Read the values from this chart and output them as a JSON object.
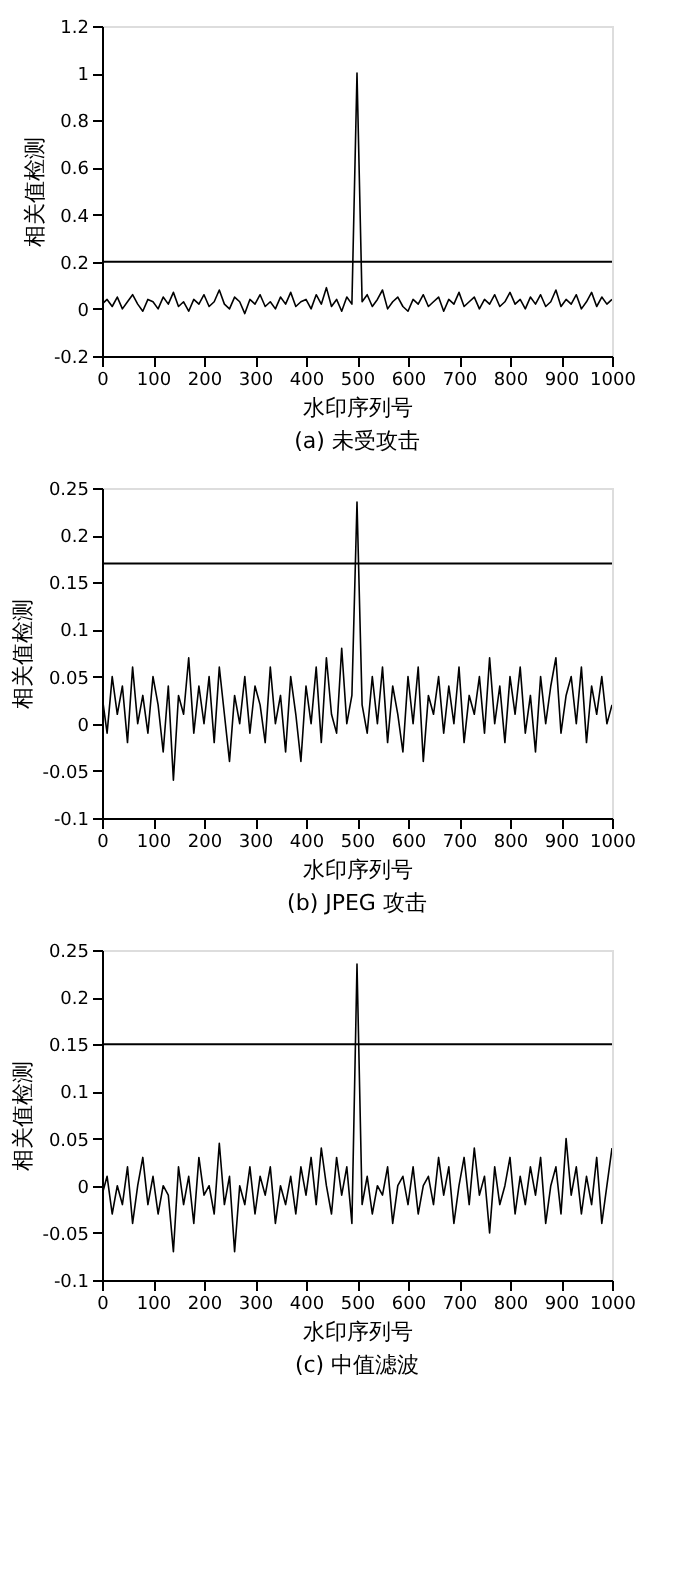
{
  "chart_data": [
    {
      "type": "line",
      "title": "(a) 未受攻击",
      "xlabel": "水印序列号",
      "ylabel": "相关值检测",
      "xlim": [
        0,
        1000
      ],
      "xticks": [
        0,
        100,
        200,
        300,
        400,
        500,
        600,
        700,
        800,
        900,
        1000
      ],
      "ylim": [
        -0.2,
        1.2
      ],
      "yticks": [
        -0.2,
        0,
        0.2,
        0.4,
        0.6,
        0.8,
        1,
        1.2
      ],
      "grid": false,
      "line_style": "solid",
      "x": [
        0,
        10,
        20,
        30,
        40,
        50,
        60,
        70,
        80,
        90,
        100,
        110,
        120,
        130,
        140,
        150,
        160,
        170,
        180,
        190,
        200,
        210,
        220,
        230,
        240,
        250,
        260,
        270,
        280,
        290,
        300,
        310,
        320,
        330,
        340,
        350,
        360,
        370,
        380,
        390,
        400,
        410,
        420,
        430,
        440,
        450,
        460,
        470,
        480,
        490,
        500,
        510,
        520,
        530,
        540,
        550,
        560,
        570,
        580,
        590,
        600,
        610,
        620,
        630,
        640,
        650,
        660,
        670,
        680,
        690,
        700,
        710,
        720,
        730,
        740,
        750,
        760,
        770,
        780,
        790,
        800,
        810,
        820,
        830,
        840,
        850,
        860,
        870,
        880,
        890,
        900,
        910,
        920,
        930,
        940,
        950,
        960,
        970,
        980,
        990,
        1000
      ],
      "series": [
        {
          "color": "#000000",
          "values": [
            0.02,
            0.04,
            0.01,
            0.05,
            0.0,
            0.03,
            0.06,
            0.02,
            -0.01,
            0.04,
            0.03,
            0.0,
            0.05,
            0.02,
            0.07,
            0.01,
            0.03,
            -0.01,
            0.04,
            0.02,
            0.06,
            0.01,
            0.03,
            0.08,
            0.02,
            0.0,
            0.05,
            0.03,
            -0.02,
            0.04,
            0.02,
            0.06,
            0.01,
            0.03,
            0.0,
            0.05,
            0.02,
            0.07,
            0.01,
            0.03,
            0.04,
            0.0,
            0.06,
            0.02,
            0.09,
            0.01,
            0.04,
            -0.01,
            0.05,
            0.02,
            1.0,
            0.03,
            0.06,
            0.01,
            0.04,
            0.08,
            0.0,
            0.03,
            0.05,
            0.01,
            -0.01,
            0.04,
            0.02,
            0.06,
            0.01,
            0.03,
            0.05,
            -0.01,
            0.04,
            0.02,
            0.07,
            0.01,
            0.03,
            0.05,
            0.0,
            0.04,
            0.02,
            0.06,
            0.01,
            0.03,
            0.07,
            0.02,
            0.04,
            0.0,
            0.05,
            0.02,
            0.06,
            0.01,
            0.03,
            0.08,
            0.01,
            0.04,
            0.02,
            0.06,
            0.0,
            0.03,
            0.07,
            0.01,
            0.05,
            0.02,
            0.04
          ]
        }
      ],
      "ref_lines": [
        {
          "axis": "y",
          "value": 0.2,
          "color": "#000000"
        }
      ]
    },
    {
      "type": "line",
      "title": "(b) JPEG 攻击",
      "xlabel": "水印序列号",
      "ylabel": "相关值检测",
      "xlim": [
        0,
        1000
      ],
      "xticks": [
        0,
        100,
        200,
        300,
        400,
        500,
        600,
        700,
        800,
        900,
        1000
      ],
      "ylim": [
        -0.1,
        0.25
      ],
      "yticks": [
        -0.1,
        -0.05,
        0,
        0.05,
        0.1,
        0.15,
        0.2,
        0.25
      ],
      "grid": false,
      "line_style": "solid",
      "x": [
        0,
        10,
        20,
        30,
        40,
        50,
        60,
        70,
        80,
        90,
        100,
        110,
        120,
        130,
        140,
        150,
        160,
        170,
        180,
        190,
        200,
        210,
        220,
        230,
        240,
        250,
        260,
        270,
        280,
        290,
        300,
        310,
        320,
        330,
        340,
        350,
        360,
        370,
        380,
        390,
        400,
        410,
        420,
        430,
        440,
        450,
        460,
        470,
        480,
        490,
        500,
        510,
        520,
        530,
        540,
        550,
        560,
        570,
        580,
        590,
        600,
        610,
        620,
        630,
        640,
        650,
        660,
        670,
        680,
        690,
        700,
        710,
        720,
        730,
        740,
        750,
        760,
        770,
        780,
        790,
        800,
        810,
        820,
        830,
        840,
        850,
        860,
        870,
        880,
        890,
        900,
        910,
        920,
        930,
        940,
        950,
        960,
        970,
        980,
        990,
        1000
      ],
      "series": [
        {
          "color": "#000000",
          "values": [
            0.03,
            -0.01,
            0.05,
            0.01,
            0.04,
            -0.02,
            0.06,
            0.0,
            0.03,
            -0.01,
            0.05,
            0.02,
            -0.03,
            0.04,
            -0.06,
            0.03,
            0.01,
            0.07,
            -0.01,
            0.04,
            0.0,
            0.05,
            -0.02,
            0.06,
            0.01,
            -0.04,
            0.03,
            0.0,
            0.05,
            -0.01,
            0.04,
            0.02,
            -0.02,
            0.06,
            0.0,
            0.03,
            -0.03,
            0.05,
            0.01,
            -0.04,
            0.04,
            0.0,
            0.06,
            -0.02,
            0.07,
            0.01,
            -0.01,
            0.08,
            0.0,
            0.03,
            0.235,
            0.02,
            -0.01,
            0.05,
            0.0,
            0.06,
            -0.02,
            0.04,
            0.01,
            -0.03,
            0.05,
            0.0,
            0.06,
            -0.04,
            0.03,
            0.01,
            0.05,
            -0.01,
            0.04,
            0.0,
            0.06,
            -0.02,
            0.03,
            0.01,
            0.05,
            -0.01,
            0.07,
            0.0,
            0.04,
            -0.02,
            0.05,
            0.01,
            0.06,
            -0.01,
            0.03,
            -0.03,
            0.05,
            0.0,
            0.04,
            0.07,
            -0.01,
            0.03,
            0.05,
            0.0,
            0.06,
            -0.02,
            0.04,
            0.01,
            0.05,
            0.0,
            0.02
          ]
        }
      ],
      "ref_lines": [
        {
          "axis": "y",
          "value": 0.17,
          "color": "#000000"
        }
      ]
    },
    {
      "type": "line",
      "title": "(c) 中值滤波",
      "xlabel": "水印序列号",
      "ylabel": "相关值检测",
      "xlim": [
        0,
        1000
      ],
      "xticks": [
        0,
        100,
        200,
        300,
        400,
        500,
        600,
        700,
        800,
        900,
        1000
      ],
      "ylim": [
        -0.1,
        0.25
      ],
      "yticks": [
        -0.1,
        -0.05,
        0,
        0.05,
        0.1,
        0.15,
        0.2,
        0.25
      ],
      "grid": false,
      "line_style": "solid",
      "x": [
        0,
        10,
        20,
        30,
        40,
        50,
        60,
        70,
        80,
        90,
        100,
        110,
        120,
        130,
        140,
        150,
        160,
        170,
        180,
        190,
        200,
        210,
        220,
        230,
        240,
        250,
        260,
        270,
        280,
        290,
        300,
        310,
        320,
        330,
        340,
        350,
        360,
        370,
        380,
        390,
        400,
        410,
        420,
        430,
        440,
        450,
        460,
        470,
        480,
        490,
        500,
        510,
        520,
        530,
        540,
        550,
        560,
        570,
        580,
        590,
        600,
        610,
        620,
        630,
        640,
        650,
        660,
        670,
        680,
        690,
        700,
        710,
        720,
        730,
        740,
        750,
        760,
        770,
        780,
        790,
        800,
        810,
        820,
        830,
        840,
        850,
        860,
        870,
        880,
        890,
        900,
        910,
        920,
        930,
        940,
        950,
        960,
        970,
        980,
        990,
        1000
      ],
      "series": [
        {
          "color": "#000000",
          "values": [
            -0.01,
            0.01,
            -0.03,
            0.0,
            -0.02,
            0.02,
            -0.04,
            0.0,
            0.03,
            -0.02,
            0.01,
            -0.03,
            0.0,
            -0.01,
            -0.07,
            0.02,
            -0.02,
            0.01,
            -0.04,
            0.03,
            -0.01,
            0.0,
            -0.03,
            0.045,
            -0.02,
            0.01,
            -0.07,
            0.0,
            -0.02,
            0.02,
            -0.03,
            0.01,
            -0.01,
            0.02,
            -0.04,
            0.0,
            -0.02,
            0.01,
            -0.03,
            0.02,
            -0.01,
            0.03,
            -0.02,
            0.04,
            0.0,
            -0.03,
            0.03,
            -0.01,
            0.02,
            -0.04,
            0.235,
            -0.02,
            0.01,
            -0.03,
            0.0,
            -0.01,
            0.02,
            -0.04,
            0.0,
            0.01,
            -0.02,
            0.02,
            -0.03,
            0.0,
            0.01,
            -0.02,
            0.03,
            -0.01,
            0.02,
            -0.04,
            0.0,
            0.03,
            -0.02,
            0.04,
            -0.01,
            0.01,
            -0.05,
            0.02,
            -0.02,
            0.0,
            0.03,
            -0.03,
            0.01,
            -0.02,
            0.02,
            -0.01,
            0.03,
            -0.04,
            0.0,
            0.02,
            -0.03,
            0.05,
            -0.01,
            0.02,
            -0.03,
            0.01,
            -0.02,
            0.03,
            -0.04,
            0.0,
            0.04
          ]
        }
      ],
      "ref_lines": [
        {
          "axis": "y",
          "value": 0.15,
          "color": "#000000"
        }
      ]
    }
  ]
}
